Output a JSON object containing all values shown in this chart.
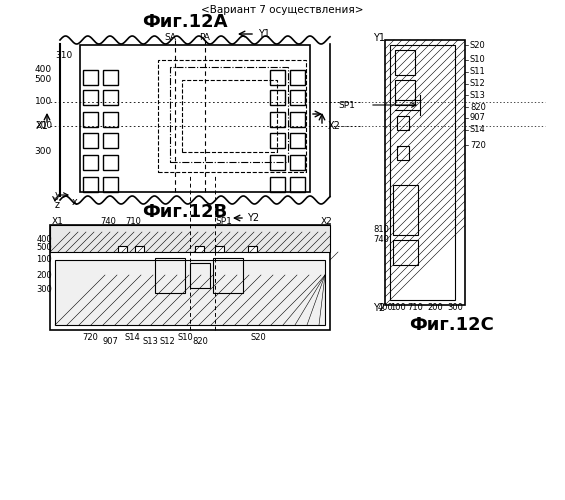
{
  "title_variant": "<Вариант 7 осуществления>",
  "fig12a_label": "Фиг.12А",
  "fig12b_label": "Фиг.12В",
  "fig12c_label": "Фиг.12С",
  "bg_color": "#ffffff",
  "line_color": "#000000"
}
